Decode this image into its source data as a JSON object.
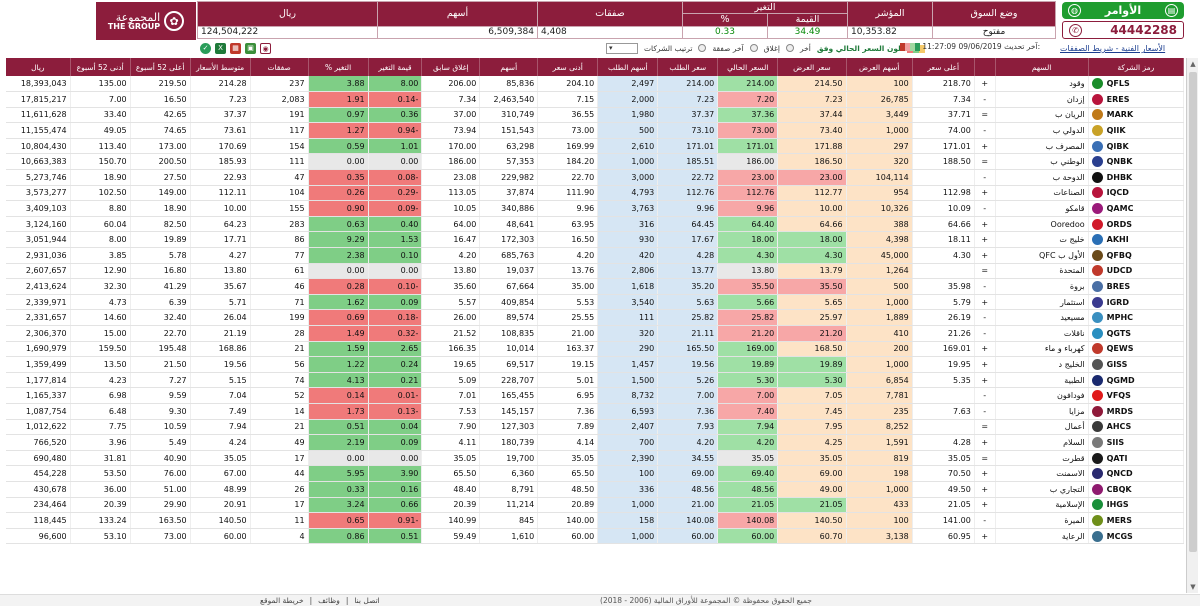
{
  "header": {
    "logo_ar": "المجموعة",
    "logo_en": "THE GROUP",
    "orders_label": "الأوامر",
    "phone": "44442288"
  },
  "summary": {
    "labels": {
      "market_status": "وضع السوق",
      "index": "المؤشر",
      "change": "التغير",
      "value": "القيمة",
      "pct": "%",
      "trades": "صفقات",
      "shares": "أسهم",
      "riyal": "ريال"
    },
    "market_status": "مفتوح",
    "index": "10,353.82",
    "change_value": "34.49",
    "change_pct": "0.33",
    "trades": "4,408",
    "shares": "6,509,384",
    "riyal": "124,504,222"
  },
  "controls": {
    "sort_label": "ترتيب الشركات",
    "last_deal": "آخر صفقة",
    "close": "إغلاق",
    "last": "أخر",
    "color_label": "لون السعر الحالي وفق",
    "updated_label": "آخر تحديث:",
    "updated_value": "11:27:09 09/06/2019"
  },
  "breadcrumb": "الأسعار الفنية - شريط الصفقات",
  "columns": [
    "رمز الشركة",
    "السهم",
    "",
    "أعلى سعر",
    "أسهم العرض",
    "سعر العرض",
    "السعر الحالي",
    "سعر الطلب",
    "أسهم الطلب",
    "أدنى سعر",
    "أسهم",
    "إغلاق سابق",
    "قيمة التغير",
    "% التغير",
    "صفقات",
    "متوسط الأسعار",
    "أعلى 52 أسبوع",
    "أدنى 52 أسبوع",
    "ريال"
  ],
  "rows": [
    {
      "sym": "QFLS",
      "name": "وقود",
      "c": "#1a8d2a",
      "t": "+",
      "high": "218.70",
      "askq": "100",
      "ask": "214.50",
      "cur": "214.00",
      "bid": "214.00",
      "bidq": "2,497",
      "low": "204.10",
      "shares": "85,836",
      "prev": "206.00",
      "chg": "8.00",
      "pct": "3.88",
      "tr": "237",
      "avg": "214.28",
      "h52": "219.50",
      "l52": "135.00",
      "val": "18,393,043",
      "s": "g"
    },
    {
      "sym": "ERES",
      "name": "إزدان",
      "c": "#b8143c",
      "t": "-",
      "high": "7.34",
      "askq": "26,785",
      "ask": "7.23",
      "cur": "7.20",
      "bid": "7.23",
      "bidq": "2,000",
      "low": "7.15",
      "shares": "2,463,540",
      "prev": "7.34",
      "chg": "0.14-",
      "pct": "1.91",
      "tr": "2,083",
      "avg": "7.23",
      "h52": "16.50",
      "l52": "7.00",
      "val": "17,815,217",
      "s": "r"
    },
    {
      "sym": "MARK",
      "name": "الريان ب",
      "c": "#c07a1a",
      "t": "=",
      "high": "37.71",
      "askq": "3,449",
      "ask": "37.44",
      "cur": "37.36",
      "bid": "37.37",
      "bidq": "1,980",
      "low": "36.55",
      "shares": "310,749",
      "prev": "37.00",
      "chg": "0.36",
      "pct": "0.97",
      "tr": "191",
      "avg": "37.37",
      "h52": "42.65",
      "l52": "33.40",
      "val": "11,611,628",
      "s": "g"
    },
    {
      "sym": "QIIK",
      "name": "الدولي ب",
      "c": "#c9a227",
      "t": "-",
      "high": "74.00",
      "askq": "1,000",
      "ask": "73.40",
      "cur": "73.00",
      "bid": "73.10",
      "bidq": "500",
      "low": "73.00",
      "shares": "151,543",
      "prev": "73.94",
      "chg": "0.94-",
      "pct": "1.27",
      "tr": "117",
      "avg": "73.61",
      "h52": "74.65",
      "l52": "49.05",
      "val": "11,155,474",
      "s": "r"
    },
    {
      "sym": "QIBK",
      "name": "المصرف ب",
      "c": "#3a6fb5",
      "t": "+",
      "high": "171.01",
      "askq": "297",
      "ask": "171.88",
      "cur": "171.01",
      "bid": "171.01",
      "bidq": "2,610",
      "low": "169.99",
      "shares": "63,298",
      "prev": "170.00",
      "chg": "1.01",
      "pct": "0.59",
      "tr": "154",
      "avg": "170.69",
      "h52": "173.00",
      "l52": "113.40",
      "val": "10,804,430",
      "s": "g"
    },
    {
      "sym": "QNBK",
      "name": "الوطني ب",
      "c": "#2a3f8f",
      "t": "=",
      "high": "188.50",
      "askq": "320",
      "ask": "186.50",
      "cur": "186.00",
      "bid": "185.51",
      "bidq": "1,000",
      "low": "184.20",
      "shares": "57,353",
      "prev": "186.00",
      "chg": "0.00",
      "pct": "0.00",
      "tr": "111",
      "avg": "185.93",
      "h52": "200.50",
      "l52": "150.70",
      "val": "10,663,383",
      "s": "w"
    },
    {
      "sym": "DHBK",
      "name": "الدوحة ب",
      "c": "#111111",
      "t": "-",
      "high": "",
      "askq": "104,114",
      "ask": "23.00",
      "cur": "23.00",
      "bid": "22.72",
      "bidq": "3,000",
      "low": "22.70",
      "shares": "229,982",
      "prev": "23.08",
      "chg": "0.08-",
      "pct": "0.35",
      "tr": "47",
      "avg": "22.93",
      "h52": "27.50",
      "l52": "18.90",
      "val": "5,273,746",
      "s": "r"
    },
    {
      "sym": "IQCD",
      "name": "الصناعات",
      "c": "#b8143c",
      "t": "+",
      "high": "112.98",
      "askq": "954",
      "ask": "112.77",
      "cur": "112.76",
      "bid": "112.76",
      "bidq": "4,793",
      "low": "111.90",
      "shares": "37,874",
      "prev": "113.05",
      "chg": "0.29-",
      "pct": "0.26",
      "tr": "104",
      "avg": "112.11",
      "h52": "149.00",
      "l52": "102.50",
      "val": "3,573,277",
      "s": "r"
    },
    {
      "sym": "QAMC",
      "name": "قامكو",
      "c": "#9a1a7a",
      "t": "-",
      "high": "10.09",
      "askq": "10,326",
      "ask": "10.00",
      "cur": "9.96",
      "bid": "9.96",
      "bidq": "3,763",
      "low": "9.96",
      "shares": "340,886",
      "prev": "10.05",
      "chg": "0.09-",
      "pct": "0.90",
      "tr": "155",
      "avg": "10.00",
      "h52": "18.90",
      "l52": "8.80",
      "val": "3,409,103",
      "s": "r"
    },
    {
      "sym": "ORDS",
      "name": "Ooredoo",
      "c": "#d11a2a",
      "t": "+",
      "high": "64.66",
      "askq": "388",
      "ask": "64.66",
      "cur": "64.40",
      "bid": "64.45",
      "bidq": "316",
      "low": "63.95",
      "shares": "48,641",
      "prev": "64.00",
      "chg": "0.40",
      "pct": "0.63",
      "tr": "283",
      "avg": "64.23",
      "h52": "82.50",
      "l52": "60.04",
      "val": "3,124,160",
      "s": "g"
    },
    {
      "sym": "AKHI",
      "name": "خليج ت",
      "c": "#2a6fb5",
      "t": "+",
      "high": "18.11",
      "askq": "4,398",
      "ask": "18.00",
      "cur": "18.00",
      "bid": "17.67",
      "bidq": "930",
      "low": "16.50",
      "shares": "172,303",
      "prev": "16.47",
      "chg": "1.53",
      "pct": "9.29",
      "tr": "86",
      "avg": "17.71",
      "h52": "19.89",
      "l52": "8.00",
      "val": "3,051,944",
      "s": "g"
    },
    {
      "sym": "QFBQ",
      "name": "QFC الأول ب",
      "c": "#6a4a1a",
      "t": "+",
      "high": "4.30",
      "askq": "45,000",
      "ask": "4.30",
      "cur": "4.30",
      "bid": "4.28",
      "bidq": "420",
      "low": "4.20",
      "shares": "685,763",
      "prev": "4.20",
      "chg": "0.10",
      "pct": "2.38",
      "tr": "77",
      "avg": "4.27",
      "h52": "5.78",
      "l52": "3.85",
      "val": "2,931,036",
      "s": "g"
    },
    {
      "sym": "UDCD",
      "name": "المتحدة",
      "c": "#c0392b",
      "t": "=",
      "high": "",
      "askq": "1,264",
      "ask": "13.79",
      "cur": "13.80",
      "bid": "13.77",
      "bidq": "2,806",
      "low": "13.76",
      "shares": "19,037",
      "prev": "13.80",
      "chg": "0.00",
      "pct": "0.00",
      "tr": "61",
      "avg": "13.80",
      "h52": "16.80",
      "l52": "12.90",
      "val": "2,607,657",
      "s": "w"
    },
    {
      "sym": "BRES",
      "name": "بروة",
      "c": "#4a6fa5",
      "t": "-",
      "high": "35.98",
      "askq": "500",
      "ask": "35.50",
      "cur": "35.50",
      "bid": "35.20",
      "bidq": "1,618",
      "low": "35.00",
      "shares": "67,664",
      "prev": "35.60",
      "chg": "0.10-",
      "pct": "0.28",
      "tr": "46",
      "avg": "35.67",
      "h52": "41.29",
      "l52": "32.30",
      "val": "2,413,624",
      "s": "r"
    },
    {
      "sym": "IGRD",
      "name": "استثمار",
      "c": "#3a3a8f",
      "t": "+",
      "high": "5.79",
      "askq": "1,000",
      "ask": "5.65",
      "cur": "5.66",
      "bid": "5.63",
      "bidq": "3,540",
      "low": "5.53",
      "shares": "409,854",
      "prev": "5.57",
      "chg": "0.09",
      "pct": "1.62",
      "tr": "71",
      "avg": "5.71",
      "h52": "6.39",
      "l52": "4.73",
      "val": "2,339,971",
      "s": "g"
    },
    {
      "sym": "MPHC",
      "name": "مسيعيد",
      "c": "#3a8fc0",
      "t": "-",
      "high": "26.19",
      "askq": "1,889",
      "ask": "25.97",
      "cur": "25.82",
      "bid": "25.82",
      "bidq": "111",
      "low": "25.55",
      "shares": "89,574",
      "prev": "26.00",
      "chg": "0.18-",
      "pct": "0.69",
      "tr": "199",
      "avg": "26.04",
      "h52": "32.40",
      "l52": "14.60",
      "val": "2,331,657",
      "s": "r"
    },
    {
      "sym": "QGTS",
      "name": "ناقلات",
      "c": "#2a8fc0",
      "t": "-",
      "high": "21.26",
      "askq": "410",
      "ask": "21.20",
      "cur": "21.20",
      "bid": "21.11",
      "bidq": "320",
      "low": "21.00",
      "shares": "108,835",
      "prev": "21.52",
      "chg": "0.32-",
      "pct": "1.49",
      "tr": "28",
      "avg": "21.19",
      "h52": "22.70",
      "l52": "15.00",
      "val": "2,306,370",
      "s": "r"
    },
    {
      "sym": "QEWS",
      "name": "كهرباء و ماء",
      "c": "#c0392b",
      "t": "+",
      "high": "169.01",
      "askq": "200",
      "ask": "168.50",
      "cur": "169.00",
      "bid": "165.50",
      "bidq": "290",
      "low": "163.37",
      "shares": "10,014",
      "prev": "166.35",
      "chg": "2.65",
      "pct": "1.59",
      "tr": "21",
      "avg": "168.86",
      "h52": "195.48",
      "l52": "159.50",
      "val": "1,690,979",
      "s": "g"
    },
    {
      "sym": "GISS",
      "name": "الخليج د",
      "c": "#555555",
      "t": "+",
      "high": "19.95",
      "askq": "1,000",
      "ask": "19.89",
      "cur": "19.89",
      "bid": "19.56",
      "bidq": "1,457",
      "low": "19.15",
      "shares": "69,517",
      "prev": "19.65",
      "chg": "0.24",
      "pct": "1.22",
      "tr": "56",
      "avg": "19.56",
      "h52": "21.50",
      "l52": "13.50",
      "val": "1,359,499",
      "s": "g"
    },
    {
      "sym": "QGMD",
      "name": "الطبية",
      "c": "#1a2a6f",
      "t": "+",
      "high": "5.35",
      "askq": "6,854",
      "ask": "5.30",
      "cur": "5.30",
      "bid": "5.26",
      "bidq": "1,500",
      "low": "5.01",
      "shares": "228,707",
      "prev": "5.09",
      "chg": "0.21",
      "pct": "4.13",
      "tr": "74",
      "avg": "5.15",
      "h52": "7.27",
      "l52": "4.23",
      "val": "1,177,814",
      "s": "g"
    },
    {
      "sym": "VFQS",
      "name": "فودافون",
      "c": "#e01a1a",
      "t": "-",
      "high": "",
      "askq": "7,781",
      "ask": "7.05",
      "cur": "7.00",
      "bid": "7.00",
      "bidq": "8,732",
      "low": "6.95",
      "shares": "165,455",
      "prev": "7.01",
      "chg": "0.01-",
      "pct": "0.14",
      "tr": "52",
      "avg": "7.04",
      "h52": "9.59",
      "l52": "6.98",
      "val": "1,165,337",
      "s": "r"
    },
    {
      "sym": "MRDS",
      "name": "مزايا",
      "c": "#8f1a3a",
      "t": "-",
      "high": "7.63",
      "askq": "235",
      "ask": "7.45",
      "cur": "7.40",
      "bid": "7.36",
      "bidq": "6,593",
      "low": "7.36",
      "shares": "145,157",
      "prev": "7.53",
      "chg": "0.13-",
      "pct": "1.73",
      "tr": "14",
      "avg": "7.49",
      "h52": "9.30",
      "l52": "6.48",
      "val": "1,087,754",
      "s": "r"
    },
    {
      "sym": "AHCS",
      "name": "أعمال",
      "c": "#3a3a3a",
      "t": "=",
      "high": "",
      "askq": "8,252",
      "ask": "7.95",
      "cur": "7.94",
      "bid": "7.93",
      "bidq": "2,407",
      "low": "7.89",
      "shares": "127,303",
      "prev": "7.90",
      "chg": "0.04",
      "pct": "0.51",
      "tr": "21",
      "avg": "7.94",
      "h52": "10.59",
      "l52": "7.75",
      "val": "1,012,622",
      "s": "g"
    },
    {
      "sym": "SIIS",
      "name": "السلام",
      "c": "#7a7a7a",
      "t": "+",
      "high": "4.28",
      "askq": "1,591",
      "ask": "4.25",
      "cur": "4.20",
      "bid": "4.20",
      "bidq": "700",
      "low": "4.14",
      "shares": "180,739",
      "prev": "4.11",
      "chg": "0.09",
      "pct": "2.19",
      "tr": "49",
      "avg": "4.24",
      "h52": "5.49",
      "l52": "3.96",
      "val": "766,520",
      "s": "g"
    },
    {
      "sym": "QATI",
      "name": "قطرت",
      "c": "#1a1a1a",
      "t": "=",
      "high": "35.05",
      "askq": "819",
      "ask": "35.05",
      "cur": "35.05",
      "bid": "34.55",
      "bidq": "2,390",
      "low": "35.05",
      "shares": "19,700",
      "prev": "35.05",
      "chg": "0.00",
      "pct": "0.00",
      "tr": "17",
      "avg": "35.05",
      "h52": "40.90",
      "l52": "31.81",
      "val": "690,480",
      "s": "w"
    },
    {
      "sym": "QNCD",
      "name": "الاسمنت",
      "c": "#2a2a6f",
      "t": "+",
      "high": "70.50",
      "askq": "198",
      "ask": "69.00",
      "cur": "69.40",
      "bid": "69.00",
      "bidq": "100",
      "low": "65.50",
      "shares": "6,360",
      "prev": "65.50",
      "chg": "3.90",
      "pct": "5.95",
      "tr": "44",
      "avg": "67.00",
      "h52": "76.00",
      "l52": "53.50",
      "val": "454,228",
      "s": "g"
    },
    {
      "sym": "CBQK",
      "name": "التجاري ب",
      "c": "#8f1a6f",
      "t": "+",
      "high": "49.50",
      "askq": "1,000",
      "ask": "49.00",
      "cur": "48.56",
      "bid": "48.56",
      "bidq": "336",
      "low": "48.50",
      "shares": "8,791",
      "prev": "48.40",
      "chg": "0.16",
      "pct": "0.33",
      "tr": "26",
      "avg": "48.99",
      "h52": "51.00",
      "l52": "36.00",
      "val": "430,678",
      "s": "g"
    },
    {
      "sym": "IHGS",
      "name": "الإسلامية",
      "c": "#1a8f3a",
      "t": "+",
      "high": "21.05",
      "askq": "433",
      "ask": "21.05",
      "cur": "21.05",
      "bid": "21.00",
      "bidq": "1,000",
      "low": "20.89",
      "shares": "11,214",
      "prev": "20.39",
      "chg": "0.66",
      "pct": "3.24",
      "tr": "17",
      "avg": "20.91",
      "h52": "29.90",
      "l52": "20.39",
      "val": "234,464",
      "s": "g"
    },
    {
      "sym": "MERS",
      "name": "الميرة",
      "c": "#6f8f1a",
      "t": "-",
      "high": "141.00",
      "askq": "100",
      "ask": "140.50",
      "cur": "140.08",
      "bid": "140.08",
      "bidq": "158",
      "low": "140.00",
      "shares": "845",
      "prev": "140.99",
      "chg": "0.91-",
      "pct": "0.65",
      "tr": "11",
      "avg": "140.50",
      "h52": "163.50",
      "l52": "133.24",
      "val": "118,445",
      "s": "r"
    },
    {
      "sym": "MCGS",
      "name": "الرعاية",
      "c": "#3a6f8f",
      "t": "+",
      "high": "60.95",
      "askq": "3,138",
      "ask": "60.70",
      "cur": "60.00",
      "bid": "60.00",
      "bidq": "1,000",
      "low": "60.00",
      "shares": "1,610",
      "prev": "59.49",
      "chg": "0.51",
      "pct": "0.86",
      "tr": "4",
      "avg": "60.00",
      "h52": "73.00",
      "l52": "53.10",
      "val": "96,600",
      "s": "g"
    }
  ],
  "footer": {
    "copyright": "جميع الحقوق محفوظة © المجموعة للأوراق المالية (2006 - 2018)",
    "links": [
      "خريطة الموقع",
      "وظائف",
      "اتصل بنا"
    ]
  }
}
